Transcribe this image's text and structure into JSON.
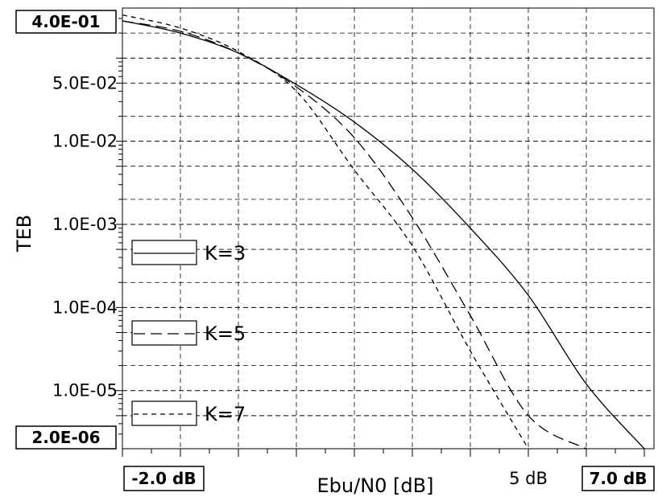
{
  "chart_data": {
    "type": "line",
    "title": "",
    "xlabel": "Ebu/N0 [dB]",
    "ylabel": "TEB",
    "xlim": [
      -2.0,
      7.0
    ],
    "ylim": [
      2e-06,
      0.4
    ],
    "yscale": "log",
    "grid": true,
    "grid_style": "dashed",
    "legend_position": "left",
    "x_end_labels": {
      "min": "-2.0 dB",
      "max": "7.0 dB"
    },
    "x_tick_labels": [
      {
        "x": 5,
        "label": "5 dB"
      }
    ],
    "y_end_labels": {
      "max": "4.0E-01",
      "min": "2.0E-06"
    },
    "y_tick_labels": [
      {
        "y": 0.05,
        "label": "5.0E-02"
      },
      {
        "y": 0.01,
        "label": "1.0E-02"
      },
      {
        "y": 0.001,
        "label": "1.0E-03"
      },
      {
        "y": 0.0001,
        "label": "1.0E-04"
      },
      {
        "y": 1e-05,
        "label": "1.0E-05"
      }
    ],
    "series": [
      {
        "name": "K=3",
        "dash": "solid",
        "x": [
          -2.0,
          -1.0,
          0.0,
          1.0,
          2.0,
          3.0,
          4.0,
          5.0,
          6.0,
          7.0
        ],
        "y": [
          0.28,
          0.2,
          0.115,
          0.048,
          0.017,
          0.0046,
          0.0009,
          0.00014,
          1.2e-05,
          2e-06
        ]
      },
      {
        "name": "K=5",
        "dash": "long-dash",
        "x": [
          -2.0,
          -1.0,
          0.0,
          1.0,
          2.0,
          3.0,
          4.0,
          5.0,
          6.0
        ],
        "y": [
          0.28,
          0.21,
          0.115,
          0.045,
          0.011,
          0.0012,
          8e-05,
          5e-06,
          2e-06
        ]
      },
      {
        "name": "K=7",
        "dash": "short-dash",
        "x": [
          -2.0,
          -1.0,
          0.0,
          1.0,
          2.0,
          3.0,
          4.0,
          5.0
        ],
        "y": [
          0.33,
          0.23,
          0.12,
          0.04,
          0.0045,
          0.00055,
          3e-05,
          2e-06
        ]
      }
    ]
  }
}
